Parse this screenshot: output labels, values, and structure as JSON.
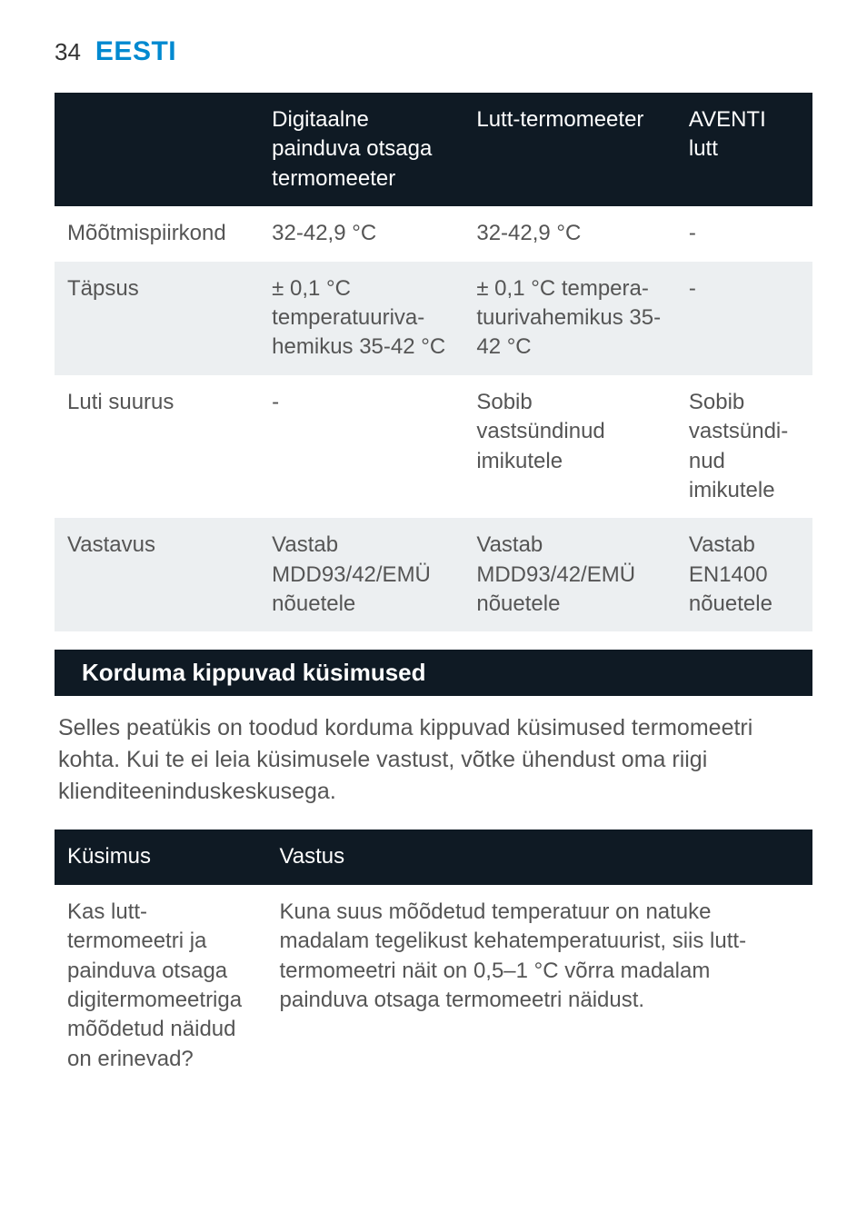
{
  "page": {
    "number": "34",
    "title": "EESTI",
    "title_color": "#0089d0"
  },
  "colors": {
    "header_bg": "#0f1a24",
    "row_even_bg": "#ffffff",
    "row_odd_bg": "#eceff1",
    "section_bar_bg": "#0f1a24",
    "body_text": "#555555",
    "cell_text": "#555555",
    "header_text": "#ffffff"
  },
  "specs_table": {
    "col_widths": [
      "27%",
      "27%",
      "28%",
      "18%"
    ],
    "header": [
      "",
      "Digitaalne painduva otsaga termomeeter",
      "Lutt-termomeeter",
      "AVENTI lutt"
    ],
    "rows": [
      {
        "label": "Mõõtmispiirkond",
        "cells": [
          "32-42,9 °C",
          "32-42,9 °C",
          "-"
        ]
      },
      {
        "label": "Täpsus",
        "cells": [
          "± 0,1 °C temperatuuriva-hemikus 35-42 °C",
          "± 0,1 °C tempera-tuurivahemikus 35-42 °C",
          "-"
        ]
      },
      {
        "label": "Luti suurus",
        "cells": [
          "-",
          "Sobib vastsündinud imikutele",
          "Sobib vastsündi-nud imikutele"
        ]
      },
      {
        "label": "Vastavus",
        "cells": [
          "Vastab MDD93/42/EMÜ nõuetele",
          "Vastab MDD93/42/EMÜ nõuetele",
          "Vastab EN1400 nõuetele"
        ]
      }
    ]
  },
  "faq_section": {
    "title": "Korduma kippuvad küsimused",
    "intro": "Selles peatükis on toodud korduma kippuvad küsimused termomeetri kohta. Kui te ei leia küsimusele vastust, võtke ühendust oma riigi klienditeeninduskeskusega.",
    "table": {
      "col_widths": [
        "28%",
        "72%"
      ],
      "header": [
        "Küsimus",
        "Vastus"
      ],
      "rows": [
        {
          "q": "Kas lutt-termomeetri ja painduva otsaga digitermomeetriga mõõdetud näidud on erinevad?",
          "a": "Kuna suus mõõdetud temperatuur on natuke madalam tegelikust kehatemperatuurist, siis lutt-termomeetri näit on 0,5–1 °C võrra madalam painduva otsaga termomeetri näidust."
        }
      ]
    }
  }
}
